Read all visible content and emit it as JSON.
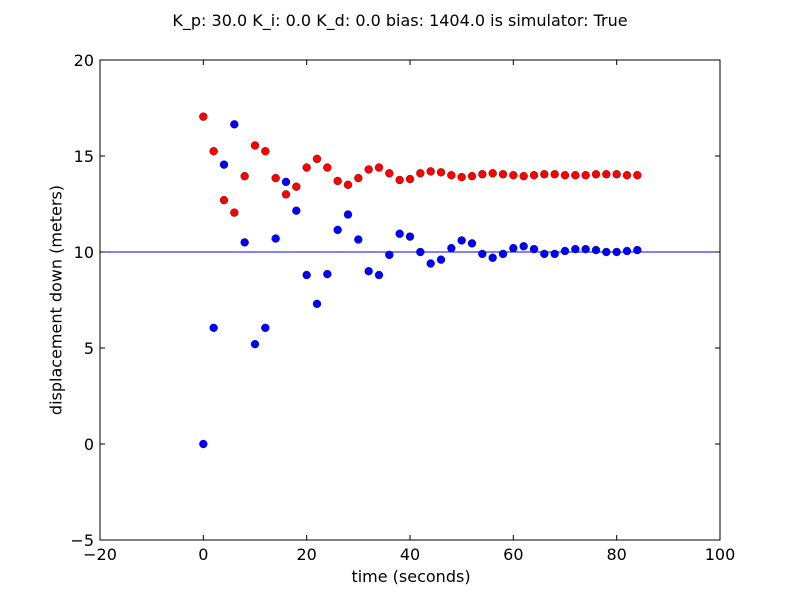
{
  "chart_data": {
    "type": "scatter",
    "title": "K_p: 30.0 K_i: 0.0 K_d: 0.0 bias: 1404.0 is simulator: True",
    "xlabel": "time (seconds)",
    "ylabel": "displacement down (meters)",
    "xlim": [
      -20,
      100
    ],
    "ylim": [
      -5,
      20
    ],
    "xticks": [
      -20,
      0,
      20,
      40,
      60,
      80,
      100
    ],
    "yticks": [
      -5,
      0,
      5,
      10,
      15,
      20
    ],
    "xtick_labels": [
      "−20",
      "0",
      "20",
      "40",
      "60",
      "80",
      "100"
    ],
    "ytick_labels": [
      "−5",
      "0",
      "5",
      "10",
      "15",
      "20"
    ],
    "grid": false,
    "hline": {
      "y": 10,
      "color": "#0000ff"
    },
    "series": [
      {
        "color": "#0000ff",
        "x": [
          0,
          2,
          4,
          6,
          8,
          10,
          12,
          14,
          16,
          18,
          20,
          22,
          24,
          26,
          28,
          30,
          32,
          34,
          36,
          38,
          40,
          42,
          44,
          46,
          48,
          50,
          52,
          54,
          56,
          58,
          60,
          62,
          64,
          66,
          68,
          70,
          72,
          74,
          76,
          78,
          80,
          82,
          84
        ],
        "y": [
          0,
          6.05,
          14.55,
          16.65,
          10.5,
          5.2,
          6.05,
          10.7,
          13.65,
          12.15,
          8.8,
          7.3,
          8.85,
          11.15,
          11.95,
          10.65,
          9.0,
          8.8,
          9.85,
          10.95,
          10.8,
          10.0,
          9.4,
          9.6,
          10.2,
          10.6,
          10.45,
          9.9,
          9.7,
          9.9,
          10.2,
          10.3,
          10.15,
          9.9,
          9.9,
          10.05,
          10.15,
          10.15,
          10.1,
          10.0,
          10.0,
          10.05,
          10.1
        ]
      },
      {
        "color": "#ff0000",
        "x": [
          0,
          2,
          4,
          6,
          8,
          10,
          12,
          14,
          16,
          18,
          20,
          22,
          24,
          26,
          28,
          30,
          32,
          34,
          36,
          38,
          40,
          42,
          44,
          46,
          48,
          50,
          52,
          54,
          56,
          58,
          60,
          62,
          64,
          66,
          68,
          70,
          72,
          74,
          76,
          78,
          80,
          82,
          84
        ],
        "y": [
          17.05,
          15.25,
          12.7,
          12.05,
          13.95,
          15.55,
          15.25,
          13.85,
          13.0,
          13.4,
          14.4,
          14.85,
          14.4,
          13.7,
          13.5,
          13.85,
          14.3,
          14.4,
          14.1,
          13.75,
          13.8,
          14.1,
          14.2,
          14.15,
          14.0,
          13.9,
          13.95,
          14.05,
          14.1,
          14.05,
          14.0,
          13.95,
          14.0,
          14.05,
          14.05,
          14.0,
          14.0,
          14.0,
          14.05,
          14.05,
          14.05,
          14.0,
          14.0
        ]
      }
    ]
  }
}
